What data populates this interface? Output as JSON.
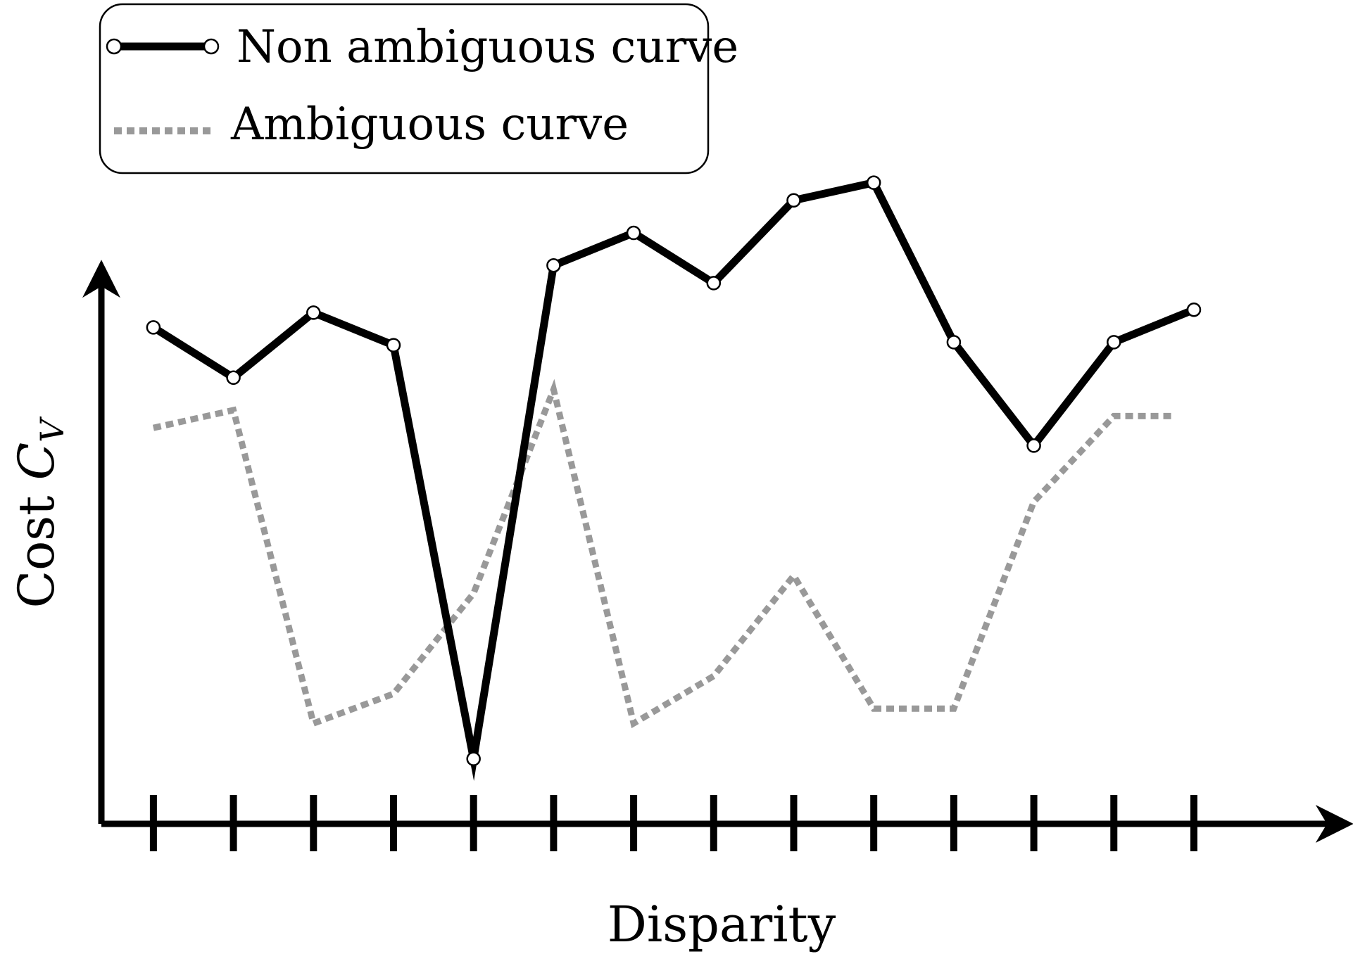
{
  "chart_data": {
    "type": "line",
    "x": [
      1,
      2,
      3,
      4,
      5,
      6,
      7,
      8,
      9,
      10,
      11,
      12,
      13,
      14
    ],
    "xlabel": "Disparity",
    "ylabel": {
      "prefix": "Cost ",
      "symbol": "C",
      "subscript": "V"
    },
    "xlim": [
      0.35,
      15.9
    ],
    "ylim": [
      0,
      12
    ],
    "series": [
      {
        "name": "Non ambiguous curve",
        "style": "solid",
        "color": "#000000",
        "markers": true,
        "values": [
          8.4,
          7.55,
          8.65,
          8.1,
          1.1,
          9.45,
          10.0,
          9.15,
          10.55,
          10.85,
          8.15,
          6.4,
          8.15,
          8.7
        ]
      },
      {
        "name": "Ambiguous curve",
        "style": "dotted",
        "color": "#999999",
        "markers": false,
        "x": [
          1,
          2,
          3,
          4,
          5,
          6,
          7,
          8,
          9,
          10,
          11,
          12,
          13,
          13.75
        ],
        "values": [
          6.7,
          7.0,
          1.7,
          2.2,
          3.9,
          7.35,
          1.7,
          2.5,
          4.2,
          1.95,
          1.95,
          5.45,
          6.9,
          6.9
        ]
      }
    ],
    "legend": {
      "position": "top-left",
      "boxed": true
    },
    "grid": false
  }
}
